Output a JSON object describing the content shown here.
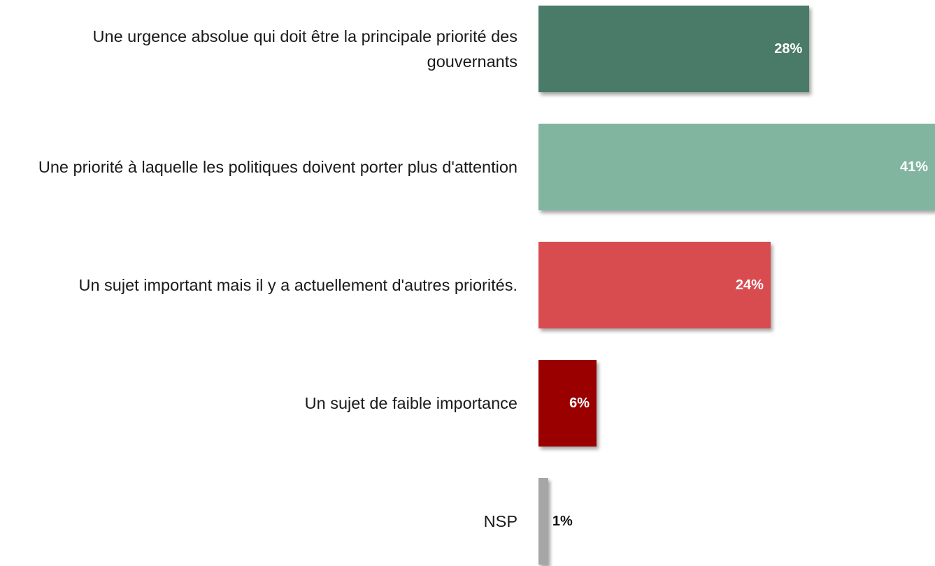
{
  "chart_data": {
    "type": "barh",
    "categories": [
      "Une urgence absolue qui doit être la principale priorité des gouvernants",
      "Une priorité à laquelle les politiques doivent porter plus d'attention",
      "Un sujet important mais il y a actuellement d'autres priorités.",
      "Un sujet de faible importance",
      "NSP"
    ],
    "values": [
      28,
      41,
      24,
      6,
      1
    ],
    "value_labels": [
      "28%",
      "41%",
      "24%",
      "6%",
      "1%"
    ],
    "colors": [
      "#4a7a68",
      "#82b5a0",
      "#d84c50",
      "#9b0000",
      "#a6a6a6"
    ],
    "xlim": [
      0,
      41
    ]
  }
}
